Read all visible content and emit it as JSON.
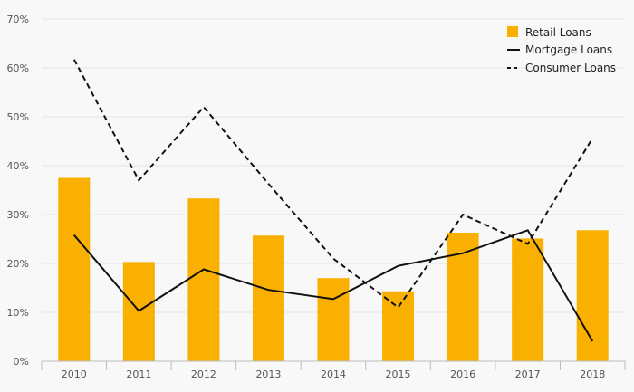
{
  "chart_data": {
    "type": "bar",
    "categories": [
      "2010",
      "2011",
      "2012",
      "2013",
      "2014",
      "2015",
      "2016",
      "2017",
      "2018"
    ],
    "series": [
      {
        "name": "Retail Loans",
        "kind": "bar",
        "values": [
          37.5,
          20.3,
          33.3,
          25.7,
          17.0,
          14.3,
          26.3,
          25.1,
          26.8
        ]
      },
      {
        "name": "Mortgage Loans",
        "kind": "line",
        "style": "solid",
        "values": [
          25.8,
          10.3,
          18.8,
          14.6,
          12.7,
          19.5,
          22.1,
          26.8,
          4.1
        ]
      },
      {
        "name": "Consumer Loans",
        "kind": "line",
        "style": "dashed",
        "values": [
          61.7,
          37.0,
          52.0,
          36.3,
          21.0,
          11.0,
          30.0,
          24.0,
          45.6
        ]
      }
    ],
    "y_ticks": [
      "0%",
      "10%",
      "20%",
      "30%",
      "40%",
      "50%",
      "60%",
      "70%"
    ],
    "ylim": [
      0,
      70
    ],
    "grid": true,
    "legend_position": "top-right",
    "colors": {
      "bar": "#f9b000",
      "line": "#111111",
      "grid": "#e4e4e4",
      "axis": "#bbbbbb",
      "background": "#f8f8f8"
    }
  }
}
